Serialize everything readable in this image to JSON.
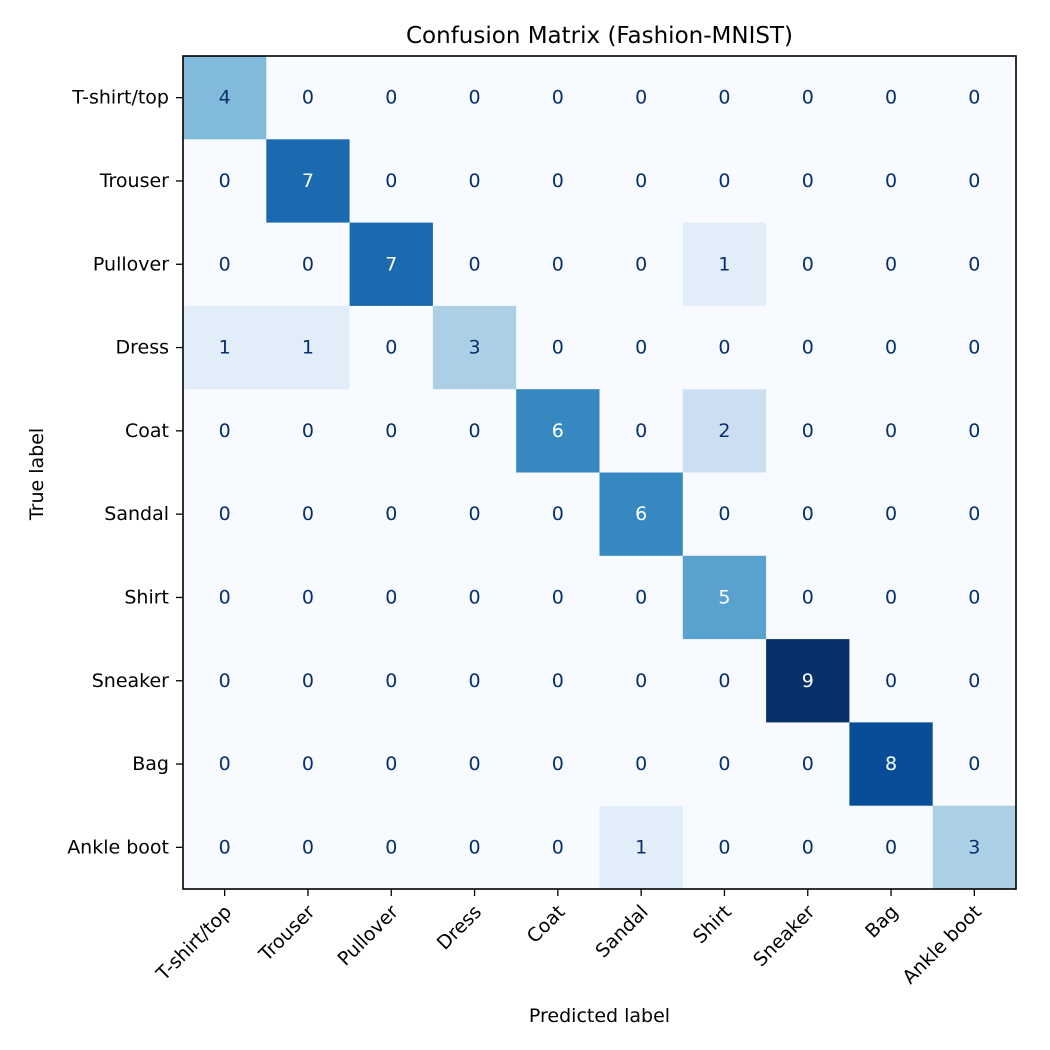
{
  "chart_data": {
    "type": "heatmap",
    "title": "Confusion Matrix (Fashion-MNIST)",
    "xlabel": "Predicted label",
    "ylabel": "True label",
    "x_categories": [
      "T-shirt/top",
      "Trouser",
      "Pullover",
      "Dress",
      "Coat",
      "Sandal",
      "Shirt",
      "Sneaker",
      "Bag",
      "Ankle boot"
    ],
    "y_categories": [
      "T-shirt/top",
      "Trouser",
      "Pullover",
      "Dress",
      "Coat",
      "Sandal",
      "Shirt",
      "Sneaker",
      "Bag",
      "Ankle boot"
    ],
    "values": [
      [
        4,
        0,
        0,
        0,
        0,
        0,
        0,
        0,
        0,
        0
      ],
      [
        0,
        7,
        0,
        0,
        0,
        0,
        0,
        0,
        0,
        0
      ],
      [
        0,
        0,
        7,
        0,
        0,
        0,
        1,
        0,
        0,
        0
      ],
      [
        1,
        1,
        0,
        3,
        0,
        0,
        0,
        0,
        0,
        0
      ],
      [
        0,
        0,
        0,
        0,
        6,
        0,
        2,
        0,
        0,
        0
      ],
      [
        0,
        0,
        0,
        0,
        0,
        6,
        0,
        0,
        0,
        0
      ],
      [
        0,
        0,
        0,
        0,
        0,
        0,
        5,
        0,
        0,
        0
      ],
      [
        0,
        0,
        0,
        0,
        0,
        0,
        0,
        9,
        0,
        0
      ],
      [
        0,
        0,
        0,
        0,
        0,
        0,
        0,
        0,
        8,
        0
      ],
      [
        0,
        0,
        0,
        0,
        0,
        1,
        0,
        0,
        0,
        3
      ]
    ],
    "value_range": [
      0,
      9
    ],
    "colormap": "Blues",
    "colorbar": false,
    "grid": false
  }
}
